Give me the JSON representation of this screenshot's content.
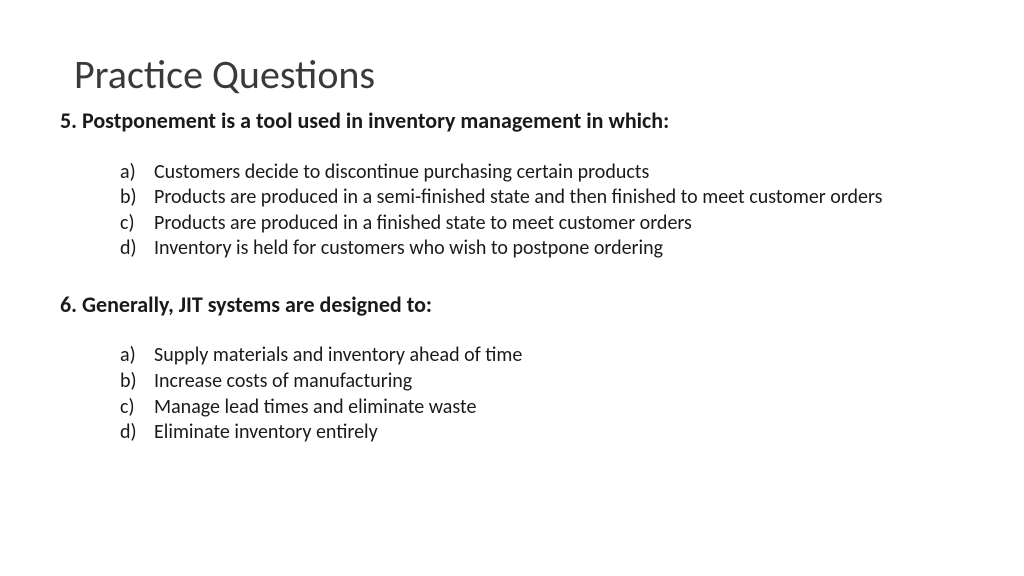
{
  "title": "Practice Questions",
  "q5": {
    "prompt": "5. Postponement is a tool used in inventory management in which:",
    "options": {
      "a": "Customers decide to discontinue purchasing certain products",
      "b": "Products are produced in a semi-finished state and then finished to meet customer orders",
      "c": "Products are produced in a finished state to meet customer orders",
      "d": "Inventory is held for customers who wish to postpone ordering"
    }
  },
  "q6": {
    "prompt": "6. Generally, JIT systems are designed to:",
    "options": {
      "a": "Supply materials and inventory ahead of time",
      "b": "Increase costs of manufacturing",
      "c": "Manage lead times and eliminate waste",
      "d": "Eliminate inventory entirely"
    }
  },
  "letters": {
    "a": "a)",
    "b": "b)",
    "c": "c)",
    "d": "d)"
  },
  "style": {
    "background": "#ffffff",
    "title_color": "#3a3a3a",
    "text_color": "#1a1a1a",
    "title_fontsize": 40,
    "question_fontsize": 22,
    "option_fontsize": 20
  }
}
